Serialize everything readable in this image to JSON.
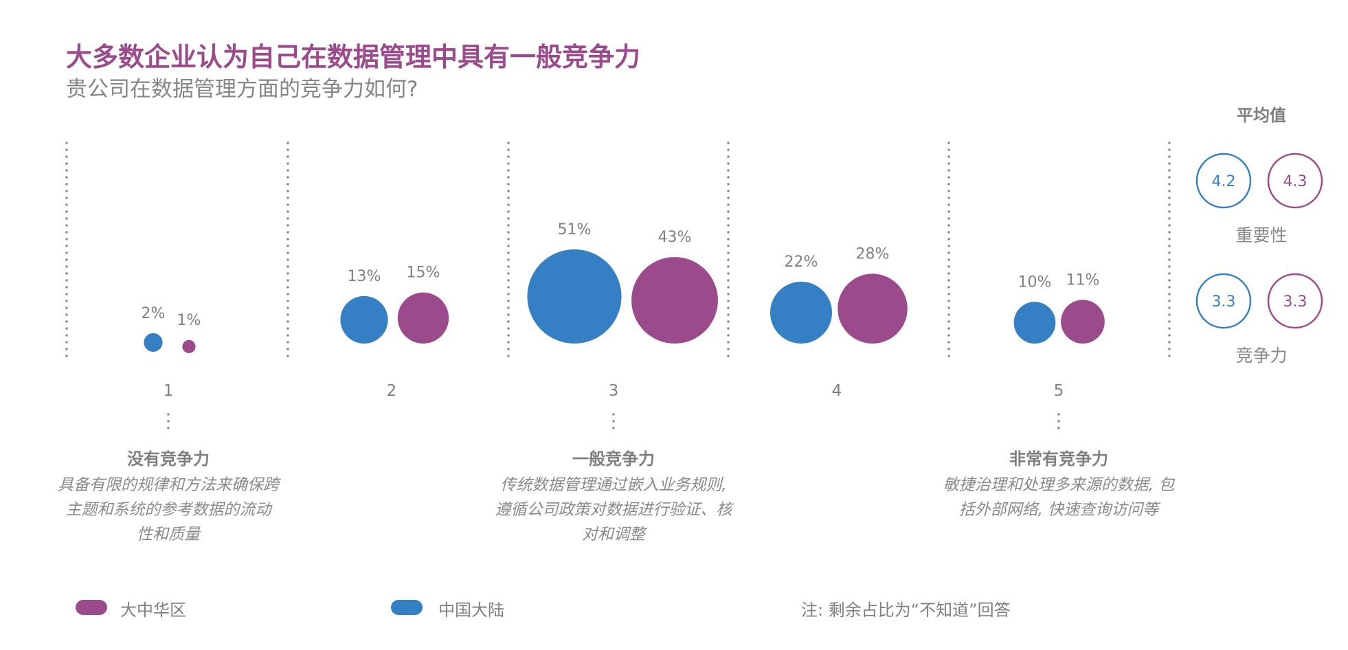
{
  "title": "大多数企业认为自己在数据管理中具有一般竞争力",
  "subtitle": "贵公司在数据管理方面的竞争力如何?",
  "colors": {
    "blue": "#3580C4",
    "purple": "#9B4A8C",
    "text": "#808080",
    "title": "#9B4A8C"
  },
  "chart_data": {
    "type": "bubble",
    "categories": [
      "1",
      "2",
      "3",
      "4",
      "5"
    ],
    "series": [
      {
        "name": "中国大陆",
        "color": "#3580C4",
        "values": [
          2,
          13,
          51,
          22,
          10
        ]
      },
      {
        "name": "大中华区",
        "color": "#9B4A8C",
        "values": [
          1,
          15,
          43,
          28,
          11
        ]
      }
    ],
    "value_labels": {
      "blue": [
        "2%",
        "13%",
        "51%",
        "22%",
        "10%"
      ],
      "purple": [
        "1%",
        "15%",
        "43%",
        "28%",
        "11%"
      ]
    },
    "scale_anchors": [
      {
        "level": "1",
        "heading": "没有竞争力",
        "lines": [
          "具备有限的规律和方法来确保跨",
          "主题和系统的参考数据的流动",
          "性和质量"
        ]
      },
      {
        "level": "3",
        "heading": "一般竞争力",
        "lines": [
          "传统数据管理通过嵌入业务规则,",
          "遵循公司政策对数据进行验证、核",
          "对和调整"
        ]
      },
      {
        "level": "5",
        "heading": "非常有竞争力",
        "lines": [
          "敏捷治理和处理多来源的数据, 包",
          "括外部网络, 快速查询访问等"
        ]
      }
    ],
    "averages": {
      "title": "平均值",
      "rows": [
        {
          "label": "重要性",
          "blue": "4.2",
          "purple": "4.3"
        },
        {
          "label": "竞争力",
          "blue": "3.3",
          "purple": "3.3"
        }
      ]
    },
    "legend": [
      {
        "name": "大中华区",
        "color": "#9B4A8C"
      },
      {
        "name": "中国大陆",
        "color": "#3580C4"
      }
    ],
    "note": "注: 剩余占比为“不知道”回答"
  }
}
